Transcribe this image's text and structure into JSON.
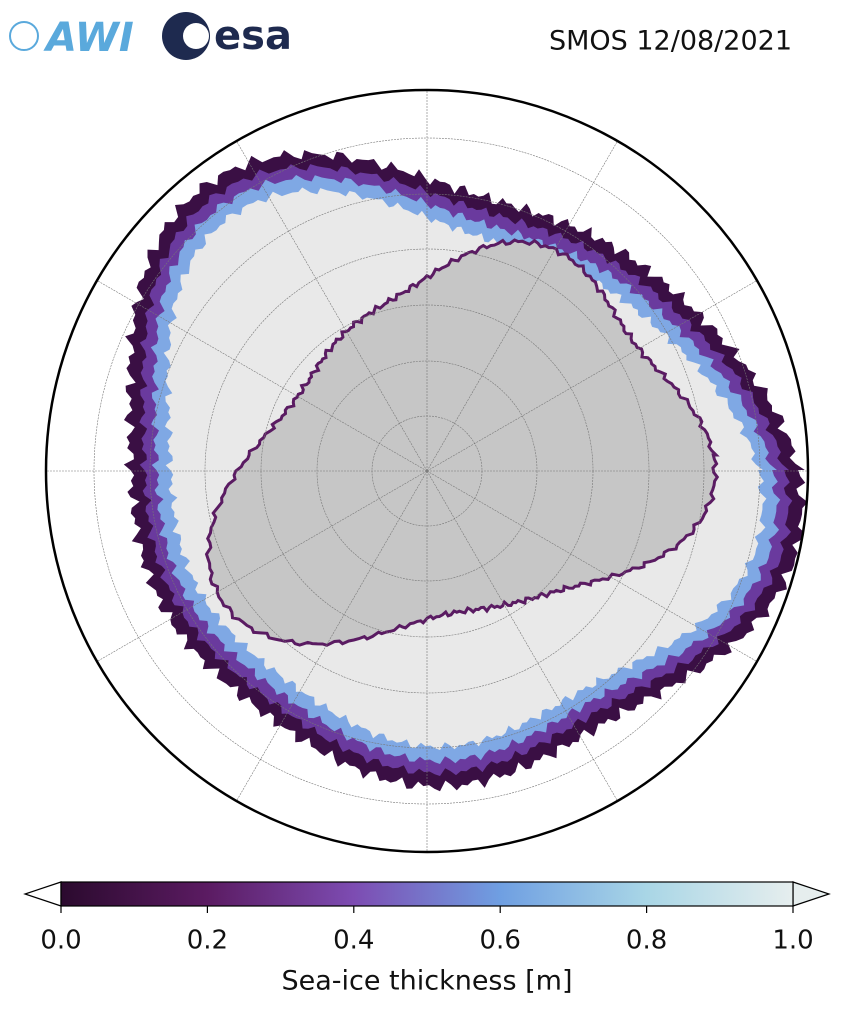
{
  "logos": [
    "AWI",
    "esa"
  ],
  "title": "SMOS 12/08/2021",
  "colorbar": {
    "label": "Sea-ice thickness [m]",
    "lim": [
      0,
      1
    ],
    "ticks": [
      {
        "value": 0,
        "label": "0.0"
      },
      {
        "value": 0.2,
        "label": "0.2"
      },
      {
        "value": 0.4,
        "label": "0.4"
      },
      {
        "value": 0.6,
        "label": "0.6"
      },
      {
        "value": 0.8,
        "label": "0.8"
      },
      {
        "value": 1,
        "label": "1.0"
      }
    ],
    "colors": [
      "#2b0a2e",
      "#5b1b62",
      "#7d4cb2",
      "#6f9fe2",
      "#a9d6e6",
      "#e6eeee"
    ]
  }
}
